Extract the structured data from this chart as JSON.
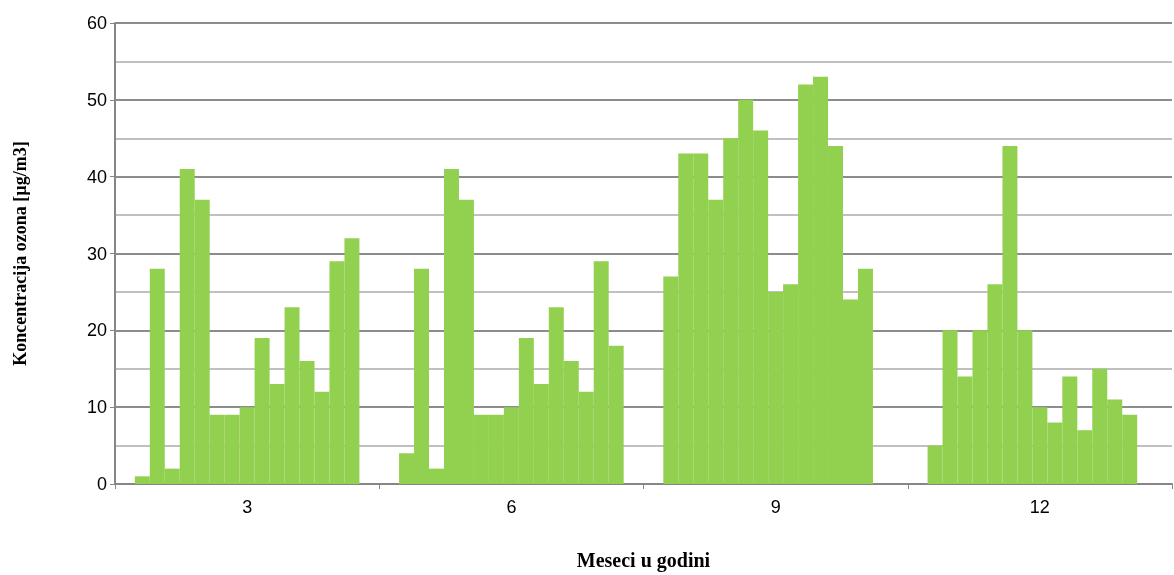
{
  "chart_data": {
    "type": "bar",
    "xlabel": "Meseci u godini",
    "ylabel": "Koncentracija ozona [µg/m3]",
    "categories": [
      "3",
      "6",
      "9",
      "12"
    ],
    "series": [
      {
        "color": "#92d050",
        "values": [
          1,
          4,
          27,
          5
        ]
      },
      {
        "color": "#92d050",
        "values": [
          28,
          28,
          43,
          20
        ]
      },
      {
        "color": "#92d050",
        "values": [
          2,
          2,
          43,
          14
        ]
      },
      {
        "color": "#92d050",
        "values": [
          41,
          41,
          37,
          20
        ]
      },
      {
        "color": "#92d050",
        "values": [
          37,
          37,
          45,
          26
        ]
      },
      {
        "color": "#92d050",
        "values": [
          9,
          9,
          50,
          44
        ]
      },
      {
        "color": "#92d050",
        "values": [
          9,
          9,
          46,
          20
        ]
      },
      {
        "color": "#92d050",
        "values": [
          10,
          10,
          25,
          10
        ]
      },
      {
        "color": "#92d050",
        "values": [
          19,
          19,
          26,
          8
        ]
      },
      {
        "color": "#92d050",
        "values": [
          13,
          13,
          52,
          14
        ]
      },
      {
        "color": "#92d050",
        "values": [
          23,
          23,
          53,
          7
        ]
      },
      {
        "color": "#92d050",
        "values": [
          16,
          16,
          44,
          15
        ]
      },
      {
        "color": "#92d050",
        "values": [
          12,
          12,
          24,
          11
        ]
      },
      {
        "color": "#92d050",
        "values": [
          29,
          29,
          28,
          9
        ]
      },
      {
        "color": "#92d050",
        "values": [
          32,
          18,
          null,
          null
        ]
      }
    ],
    "ylim": [
      0,
      60
    ],
    "yticks": [
      0,
      10,
      20,
      30,
      40,
      50,
      60
    ],
    "grid": "y"
  }
}
